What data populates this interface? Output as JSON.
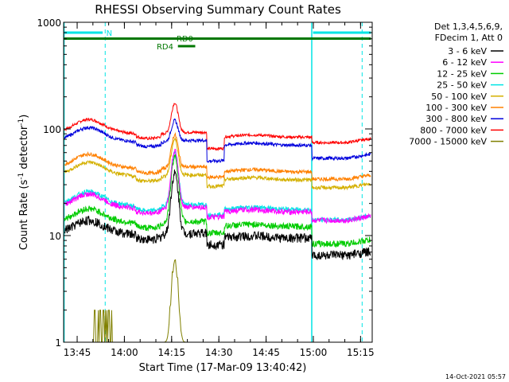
{
  "chart_data": {
    "type": "line",
    "title": "RHESSI Observing Summary Count Rates",
    "xlabel": "Start Time (17-Mar-09 13:40:42)",
    "ylabel": "Count Rate (s",
    "ylabel_sup1": "-1",
    "ylabel_mid": " detector",
    "ylabel_sup2": "-1",
    "ylabel_end": ")",
    "y_scale": "log",
    "ylim": [
      1,
      1000
    ],
    "xlim_minutes": [
      0,
      98
    ],
    "x_ticks": [
      {
        "label": "13:45",
        "min": 4.3
      },
      {
        "label": "14:00",
        "min": 19.3
      },
      {
        "label": "14:15",
        "min": 34.3
      },
      {
        "label": "14:30",
        "min": 49.3
      },
      {
        "label": "14:45",
        "min": 64.3
      },
      {
        "label": "15:00",
        "min": 79.3
      },
      {
        "label": "15:15",
        "min": 94.3
      }
    ],
    "y_ticks": [
      {
        "label": "1",
        "value": 1
      },
      {
        "label": "10",
        "value": 10
      },
      {
        "label": "100",
        "value": 100
      },
      {
        "label": "1000",
        "value": 1000
      }
    ],
    "legend": {
      "header1": "Det 1,3,4,5,6,9,",
      "header2": "FDecim 1, Att 0",
      "position": "right"
    },
    "series": [
      {
        "name": "3 - 6 keV",
        "color": "#000000",
        "base": 10.5,
        "peak": 38,
        "dip": 0.78,
        "late": 0.62,
        "noise": 0.1
      },
      {
        "name": "6 - 12 keV",
        "color": "#ff00ff",
        "base": 18.5,
        "peak": 62,
        "dip": 0.8,
        "late": 0.75,
        "noise": 0.06
      },
      {
        "name": "12 - 25 keV",
        "color": "#00cc00",
        "base": 13.5,
        "peak": 55,
        "dip": 0.78,
        "late": 0.62,
        "noise": 0.07
      },
      {
        "name": "25 - 50 keV",
        "color": "#00e5e5",
        "base": 19.5,
        "peak": 60,
        "dip": 0.8,
        "late": 0.72,
        "noise": 0.05
      },
      {
        "name": "50 - 100 keV",
        "color": "#d4b000",
        "base": 37,
        "peak": 80,
        "dip": 0.78,
        "late": 0.76,
        "noise": 0.04
      },
      {
        "name": "100 - 300 keV",
        "color": "#ff8000",
        "base": 44,
        "peak": 88,
        "dip": 0.8,
        "late": 0.77,
        "noise": 0.04
      },
      {
        "name": "300 - 800 keV",
        "color": "#0000dd",
        "base": 78,
        "peak": 120,
        "dip": 0.64,
        "late": 0.68,
        "noise": 0.035
      },
      {
        "name": "800 - 7000 keV",
        "color": "#ff0000",
        "base": 93,
        "peak": 175,
        "dip": 0.7,
        "late": 0.8,
        "noise": 0.03
      },
      {
        "name": "7000 - 15000 keV",
        "color": "#808000",
        "base": 0,
        "peak": 5.8,
        "dip": 1,
        "late": 1,
        "noise": 0
      }
    ],
    "flags": [
      {
        "label": "N",
        "color": "#00e5e5"
      },
      {
        "label": "RD0",
        "color": "#007700"
      },
      {
        "label": "RD4",
        "color": "#007700"
      }
    ],
    "timestamp": "14-Oct-2021 05:57"
  }
}
